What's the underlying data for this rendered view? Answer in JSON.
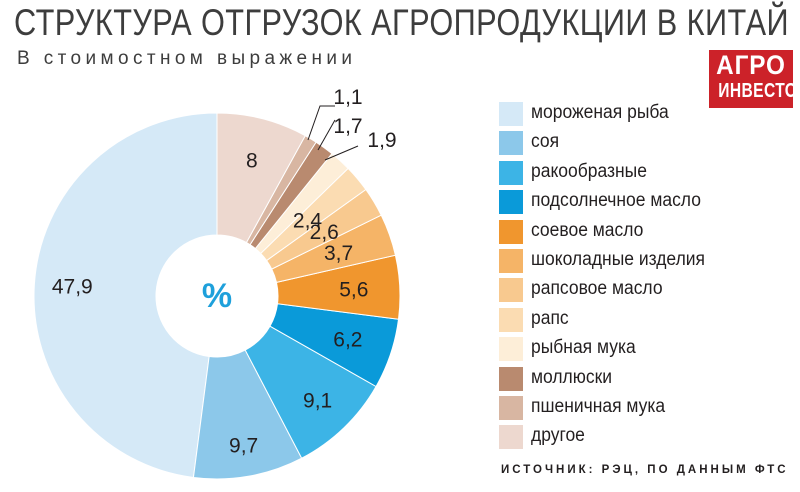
{
  "header": {
    "title": "СТРУКТУРА ОТГРУЗОК АГРОПРОДУКЦИИ В КИТАЙ",
    "subtitle": "В стоимостном выражении"
  },
  "logo": {
    "line1": "АГРО",
    "line2": "ИНВЕСТОР",
    "color": "#cc2229"
  },
  "source": "ИСТОЧНИК: РЭЦ, ПО ДАННЫМ ФТС",
  "center_label": "%",
  "chart_data": {
    "type": "pie",
    "donut": true,
    "unit": "%",
    "title": "СТРУКТУРА ОТГРУЗОК АГРОПРОДУКЦИИ В КИТАЙ",
    "subtitle": "В стоимостном выражении",
    "legend_position": "right",
    "categories": [
      "мороженая рыба",
      "соя",
      "ракообразные",
      "подсолнечное масло",
      "соевое масло",
      "шоколадные изделия",
      "рапсовое масло",
      "рапс",
      "рыбная мука",
      "моллюски",
      "пшеничная мука",
      "другое"
    ],
    "values": [
      47.9,
      9.7,
      9.1,
      6.2,
      5.6,
      3.7,
      2.6,
      2.4,
      1.9,
      1.7,
      1.1,
      8
    ],
    "labels": [
      "47,9",
      "9,7",
      "9,1",
      "6,2",
      "5,6",
      "3,7",
      "2,6",
      "2,4",
      "1,9",
      "1,7",
      "1,1",
      "8"
    ],
    "colors": [
      "#d5e9f7",
      "#8cc8ea",
      "#3cb4e6",
      "#0a9ad9",
      "#f0962e",
      "#f5b467",
      "#f8c98f",
      "#fbdcb2",
      "#fdeed8",
      "#b98a6f",
      "#d8b6a2",
      "#edd8cf"
    ]
  }
}
